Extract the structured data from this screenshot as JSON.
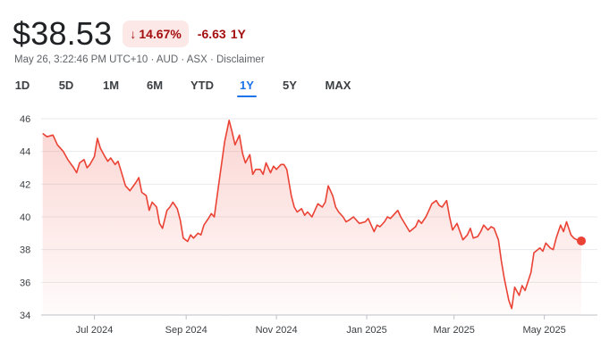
{
  "header": {
    "price": "$38.53",
    "change_pct": "14.67%",
    "change_abs": "-6.63",
    "period": "1Y",
    "meta": [
      "May 26, 3:22:46 PM UTC+10",
      "AUD",
      "ASX",
      "Disclaimer"
    ]
  },
  "tabs": [
    {
      "label": "1D"
    },
    {
      "label": "5D"
    },
    {
      "label": "1M"
    },
    {
      "label": "6M"
    },
    {
      "label": "YTD"
    },
    {
      "label": "1Y",
      "active": true
    },
    {
      "label": "5Y"
    },
    {
      "label": "MAX"
    }
  ],
  "colors": {
    "line": "#ea4335",
    "negative": "#a50e0e",
    "badge_bg": "#fce8e6",
    "accent": "#1a73e8"
  },
  "chart_data": {
    "type": "area",
    "title": "",
    "xlabel": "",
    "ylabel": "",
    "ylim": [
      34,
      46
    ],
    "yticks": [
      34,
      36,
      38,
      40,
      42,
      44,
      46
    ],
    "xticks": [
      {
        "label": "Jul 2024",
        "date": "2024-07-01"
      },
      {
        "label": "Sep 2024",
        "date": "2024-09-01"
      },
      {
        "label": "Nov 2024",
        "date": "2024-11-01"
      },
      {
        "label": "Jan 2025",
        "date": "2025-01-01"
      },
      {
        "label": "Mar 2025",
        "date": "2025-03-01"
      },
      {
        "label": "May 2025",
        "date": "2025-05-01"
      }
    ],
    "xlim": [
      "2024-05-26",
      "2025-05-26"
    ],
    "grid": true,
    "series": [
      {
        "points": [
          [
            "2024-05-27",
            45.1
          ],
          [
            "2024-05-30",
            44.9
          ],
          [
            "2024-06-03",
            45.0
          ],
          [
            "2024-06-06",
            44.4
          ],
          [
            "2024-06-10",
            44.0
          ],
          [
            "2024-06-13",
            43.5
          ],
          [
            "2024-06-17",
            43.0
          ],
          [
            "2024-06-19",
            42.7
          ],
          [
            "2024-06-21",
            43.3
          ],
          [
            "2024-06-24",
            43.5
          ],
          [
            "2024-06-26",
            43.0
          ],
          [
            "2024-06-28",
            43.2
          ],
          [
            "2024-07-01",
            43.7
          ],
          [
            "2024-07-03",
            44.8
          ],
          [
            "2024-07-05",
            44.2
          ],
          [
            "2024-07-08",
            43.7
          ],
          [
            "2024-07-10",
            43.4
          ],
          [
            "2024-07-12",
            43.6
          ],
          [
            "2024-07-15",
            43.2
          ],
          [
            "2024-07-17",
            43.4
          ],
          [
            "2024-07-19",
            42.8
          ],
          [
            "2024-07-22",
            41.9
          ],
          [
            "2024-07-25",
            41.6
          ],
          [
            "2024-07-29",
            42.1
          ],
          [
            "2024-07-31",
            42.4
          ],
          [
            "2024-08-02",
            41.5
          ],
          [
            "2024-08-05",
            41.3
          ],
          [
            "2024-08-07",
            40.4
          ],
          [
            "2024-08-09",
            40.9
          ],
          [
            "2024-08-12",
            40.6
          ],
          [
            "2024-08-14",
            39.6
          ],
          [
            "2024-08-16",
            39.3
          ],
          [
            "2024-08-19",
            40.4
          ],
          [
            "2024-08-21",
            40.6
          ],
          [
            "2024-08-23",
            40.9
          ],
          [
            "2024-08-26",
            40.5
          ],
          [
            "2024-08-28",
            39.8
          ],
          [
            "2024-08-30",
            38.7
          ],
          [
            "2024-09-02",
            38.5
          ],
          [
            "2024-09-04",
            38.9
          ],
          [
            "2024-09-06",
            38.7
          ],
          [
            "2024-09-09",
            39.0
          ],
          [
            "2024-09-11",
            38.9
          ],
          [
            "2024-09-13",
            39.5
          ],
          [
            "2024-09-16",
            39.9
          ],
          [
            "2024-09-18",
            40.2
          ],
          [
            "2024-09-20",
            40.0
          ],
          [
            "2024-09-23",
            42.0
          ],
          [
            "2024-09-25",
            43.3
          ],
          [
            "2024-09-27",
            44.6
          ],
          [
            "2024-09-30",
            45.9
          ],
          [
            "2024-10-02",
            45.2
          ],
          [
            "2024-10-04",
            44.4
          ],
          [
            "2024-10-07",
            45.0
          ],
          [
            "2024-10-09",
            43.9
          ],
          [
            "2024-10-11",
            43.3
          ],
          [
            "2024-10-14",
            43.8
          ],
          [
            "2024-10-16",
            42.6
          ],
          [
            "2024-10-18",
            42.9
          ],
          [
            "2024-10-21",
            42.9
          ],
          [
            "2024-10-23",
            42.6
          ],
          [
            "2024-10-25",
            43.3
          ],
          [
            "2024-10-28",
            42.7
          ],
          [
            "2024-10-30",
            43.1
          ],
          [
            "2024-11-01",
            42.9
          ],
          [
            "2024-11-04",
            43.2
          ],
          [
            "2024-11-06",
            43.2
          ],
          [
            "2024-11-08",
            42.9
          ],
          [
            "2024-11-11",
            41.3
          ],
          [
            "2024-11-13",
            40.6
          ],
          [
            "2024-11-15",
            40.3
          ],
          [
            "2024-11-18",
            40.5
          ],
          [
            "2024-11-20",
            40.1
          ],
          [
            "2024-11-22",
            40.3
          ],
          [
            "2024-11-25",
            40.0
          ],
          [
            "2024-11-27",
            40.4
          ],
          [
            "2024-11-29",
            40.8
          ],
          [
            "2024-12-02",
            40.6
          ],
          [
            "2024-12-04",
            40.9
          ],
          [
            "2024-12-06",
            41.9
          ],
          [
            "2024-12-09",
            41.3
          ],
          [
            "2024-12-11",
            40.6
          ],
          [
            "2024-12-13",
            40.3
          ],
          [
            "2024-12-16",
            40.0
          ],
          [
            "2024-12-18",
            39.7
          ],
          [
            "2024-12-20",
            39.8
          ],
          [
            "2024-12-23",
            40.0
          ],
          [
            "2024-12-27",
            39.6
          ],
          [
            "2024-12-31",
            39.7
          ],
          [
            "2025-01-02",
            39.9
          ],
          [
            "2025-01-06",
            39.1
          ],
          [
            "2025-01-08",
            39.5
          ],
          [
            "2025-01-10",
            39.4
          ],
          [
            "2025-01-13",
            39.7
          ],
          [
            "2025-01-15",
            40.0
          ],
          [
            "2025-01-17",
            39.9
          ],
          [
            "2025-01-20",
            40.2
          ],
          [
            "2025-01-22",
            40.4
          ],
          [
            "2025-01-24",
            40.0
          ],
          [
            "2025-01-28",
            39.4
          ],
          [
            "2025-01-30",
            39.1
          ],
          [
            "2025-02-03",
            39.4
          ],
          [
            "2025-02-05",
            39.8
          ],
          [
            "2025-02-07",
            39.6
          ],
          [
            "2025-02-10",
            40.0
          ],
          [
            "2025-02-12",
            40.4
          ],
          [
            "2025-02-14",
            40.8
          ],
          [
            "2025-02-17",
            41.0
          ],
          [
            "2025-02-19",
            40.7
          ],
          [
            "2025-02-21",
            40.6
          ],
          [
            "2025-02-24",
            41.0
          ],
          [
            "2025-02-26",
            40.0
          ],
          [
            "2025-02-28",
            39.2
          ],
          [
            "2025-03-03",
            39.6
          ],
          [
            "2025-03-05",
            39.1
          ],
          [
            "2025-03-07",
            38.6
          ],
          [
            "2025-03-10",
            38.9
          ],
          [
            "2025-03-12",
            39.3
          ],
          [
            "2025-03-14",
            38.7
          ],
          [
            "2025-03-17",
            38.8
          ],
          [
            "2025-03-19",
            39.1
          ],
          [
            "2025-03-21",
            39.5
          ],
          [
            "2025-03-24",
            39.2
          ],
          [
            "2025-03-26",
            39.4
          ],
          [
            "2025-03-28",
            39.3
          ],
          [
            "2025-03-31",
            38.6
          ],
          [
            "2025-04-02",
            37.3
          ],
          [
            "2025-04-04",
            36.2
          ],
          [
            "2025-04-07",
            34.9
          ],
          [
            "2025-04-09",
            34.4
          ],
          [
            "2025-04-11",
            35.7
          ],
          [
            "2025-04-14",
            35.2
          ],
          [
            "2025-04-16",
            35.8
          ],
          [
            "2025-04-18",
            35.5
          ],
          [
            "2025-04-22",
            36.6
          ],
          [
            "2025-04-24",
            37.8
          ],
          [
            "2025-04-28",
            38.1
          ],
          [
            "2025-04-30",
            37.9
          ],
          [
            "2025-05-02",
            38.4
          ],
          [
            "2025-05-05",
            38.1
          ],
          [
            "2025-05-07",
            38.0
          ],
          [
            "2025-05-09",
            38.7
          ],
          [
            "2025-05-12",
            39.5
          ],
          [
            "2025-05-14",
            39.1
          ],
          [
            "2025-05-16",
            39.7
          ],
          [
            "2025-05-19",
            38.9
          ],
          [
            "2025-05-21",
            38.7
          ],
          [
            "2025-05-23",
            38.6
          ],
          [
            "2025-05-26",
            38.53
          ]
        ]
      }
    ]
  }
}
